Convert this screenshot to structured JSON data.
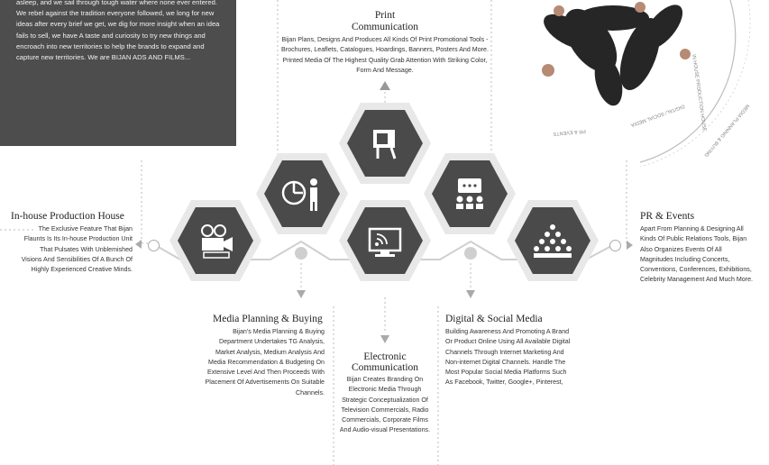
{
  "intro": {
    "text": "asleep, and we sail through tough water where none ever entered. We rebel against the tradition everyone followed, we long for new ideas after every brief we get, we dig for more insight when an idea fails to sell, we have A taste and curiosity to try new things and encroach into new territories to help the brands to expand and capture new territories. We are BIJAN ADS AND FILMS..."
  },
  "sections": {
    "print": {
      "title_line1": "Print",
      "title_line2": "Communication",
      "body": "Bijan Plans, Designs And Produces All Kinds Of Print Promotional Tools - Brochures, Leaflets, Catalogues, Hoardings, Banners, Posters And More. Printed Media Of The Highest Quality Grab Attention With Striking Color, Form And Message."
    },
    "inhouse": {
      "title": "In-house Production House",
      "body": "The Exclusive Feature That Bijan Flaunts Is Its In-house Production Unit That Pulsates With Unblemished Visions And Sensibilities Of A Bunch Of Highly Experienced Creative Minds."
    },
    "pr": {
      "title": "PR & Events",
      "body": "Apart From Planning & Designing All Kinds Of Public Relations Tools, Bijan Also Organizes Events Of All Magnitudes Including Concerts, Conventions, Conferences, Exhibitions, Celebrity Management And Much More."
    },
    "media": {
      "title": "Media Planning & Buying",
      "body": "Bijan's Media Planning & Buying Department Undertakes TG Analysis, Market Analysis, Medium Analysis And Media Recommendation & Budgeting On Extensive Level And Then Proceeds With Placement Of Advertisements On Suitable Channels."
    },
    "electronic": {
      "title_line1": "Electronic",
      "title_line2": "Communication",
      "body": "Bijan Creates Branding On Electronic Media Through Strategic Conceptualization Of Television Commercials, Radio Commercials, Corporate Films And Audio-visual Presentations."
    },
    "digital": {
      "title": "Digital & Social Media",
      "body": "Building Awareness And Promoting A Brand Or Product Online Using All Available Digital Channels Through Internet Marketing And Non-internet Digital Channels. Handle The Most Popular Social Media Platforms Such As Facebook, Twitter, Google+, Pinterest,"
    }
  },
  "ring_labels": {
    "label1": "IN HOUSE PRODUCTION HOUSE",
    "label2": "MEDIA PLANNING & BUYING",
    "label3": "DIGITAL/ SOCIAL MEDIA",
    "label4": "PR & EVENTS"
  },
  "icons": {
    "print": "signboard-icon",
    "media": "chart-person-icon",
    "inhouse": "film-camera-icon",
    "electronic": "tv-broadcast-icon",
    "digital": "presentation-icon",
    "pr": "audience-icon"
  },
  "colors": {
    "hex_fill": "#4a4a4a",
    "hex_ring": "#e6e6e6",
    "intro_bg": "#4d4d4d"
  }
}
